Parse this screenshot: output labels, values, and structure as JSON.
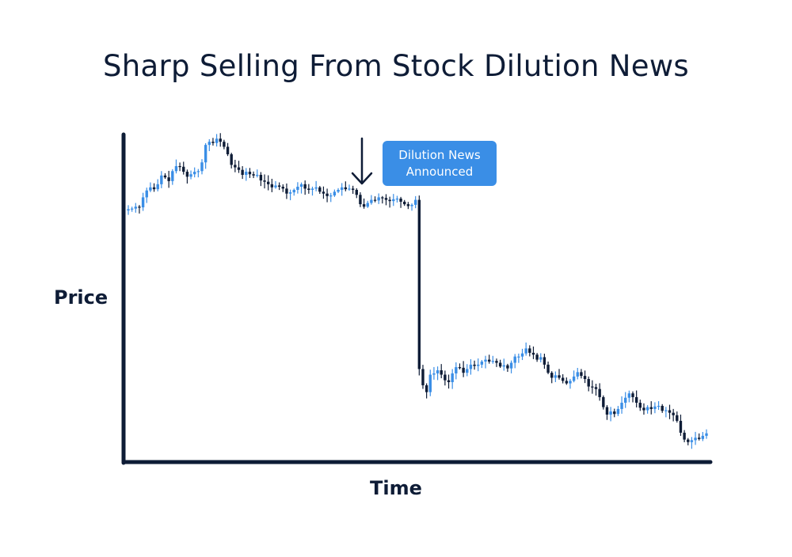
{
  "chart_data": {
    "type": "candlestick",
    "title": "Sharp Selling From Stock Dilution News",
    "xlabel": "Time",
    "ylabel": "Price",
    "axis_ticks": false,
    "grid": false,
    "colors": {
      "up": "#3a8ee6",
      "down": "#0e1c36",
      "axis": "#0e1c36",
      "annotation": "#3a8ee6"
    },
    "annotation": {
      "text": "Dilution News Announced",
      "arrow": "down-arrow-icon"
    },
    "close_prices": [
      70.5,
      70.6,
      70.9,
      70.8,
      72.4,
      73.5,
      74.0,
      73.7,
      74.5,
      75.9,
      75.6,
      75.0,
      76.6,
      77.4,
      77.3,
      76.5,
      75.7,
      76.1,
      76.5,
      76.6,
      78.0,
      80.8,
      81.3,
      81.1,
      81.8,
      81.3,
      80.5,
      79.3,
      77.6,
      77.2,
      76.8,
      76.0,
      76.5,
      76.1,
      75.9,
      76.0,
      75.1,
      74.9,
      74.5,
      74.0,
      74.3,
      74.1,
      73.8,
      73.0,
      73.2,
      73.6,
      74.1,
      74.5,
      73.8,
      73.6,
      73.8,
      74.0,
      73.3,
      73.0,
      72.6,
      72.7,
      73.3,
      73.6,
      74.0,
      73.7,
      73.8,
      73.6,
      72.8,
      71.3,
      70.9,
      71.5,
      72.0,
      71.9,
      72.4,
      72.3,
      72.0,
      71.8,
      72.1,
      72.2,
      71.7,
      71.3,
      71.0,
      71.2,
      72.0,
      44.9,
      42.3,
      41.2,
      44.0,
      44.2,
      44.7,
      44.0,
      43.1,
      42.8,
      44.2,
      45.2,
      45.1,
      44.3,
      44.9,
      45.6,
      45.4,
      45.6,
      46.1,
      46.4,
      46.1,
      46.2,
      45.9,
      45.3,
      45.5,
      45.0,
      45.9,
      46.9,
      46.9,
      47.4,
      48.2,
      47.5,
      47.2,
      46.4,
      46.8,
      45.6,
      44.3,
      43.5,
      43.9,
      43.5,
      43.0,
      42.6,
      43.0,
      43.7,
      44.4,
      43.8,
      43.3,
      42.1,
      42.0,
      41.7,
      40.4,
      38.8,
      37.6,
      38.1,
      37.7,
      38.5,
      39.5,
      40.3,
      41.0,
      40.4,
      39.5,
      38.7,
      38.3,
      38.8,
      38.5,
      38.9,
      39.0,
      38.2,
      38.3,
      37.9,
      37.5,
      36.6,
      34.7,
      33.6,
      33.2,
      33.5,
      33.9,
      33.7,
      34.2,
      34.6
    ],
    "price_range": [
      30,
      85
    ]
  }
}
